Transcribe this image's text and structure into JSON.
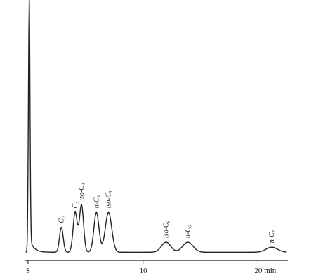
{
  "chart_data": {
    "type": "line",
    "title": "",
    "xlabel": "",
    "ylabel": "",
    "xlim": [
      -0.3,
      22.6
    ],
    "ylim": [
      0,
      100
    ],
    "grid": false,
    "x_ticks": [
      {
        "value": 0,
        "label": "S"
      },
      {
        "value": 10,
        "label": "10"
      },
      {
        "value": 20,
        "label": "20 min"
      }
    ],
    "baseline": 3,
    "solvent_peak": {
      "x": 0.1,
      "y": 100,
      "width": 0.07
    },
    "peaks": [
      {
        "label": "C₂",
        "x": 2.9,
        "y": 13,
        "width": 0.16
      },
      {
        "label": "C₃",
        "x": 4.1,
        "y": 19,
        "width": 0.18
      },
      {
        "label": "iso-C₄",
        "x": 4.65,
        "y": 22,
        "width": 0.18
      },
      {
        "label": "n-C₄",
        "x": 5.95,
        "y": 19,
        "width": 0.22
      },
      {
        "label": "iso-C₅",
        "x": 7.0,
        "y": 19,
        "width": 0.28
      },
      {
        "label": "iso-C₆",
        "x": 12.0,
        "y": 7,
        "width": 0.4
      },
      {
        "label": "n-C₆",
        "x": 13.9,
        "y": 7,
        "width": 0.45
      },
      {
        "label": "n-C₇",
        "x": 21.2,
        "y": 5,
        "width": 0.5
      }
    ]
  }
}
